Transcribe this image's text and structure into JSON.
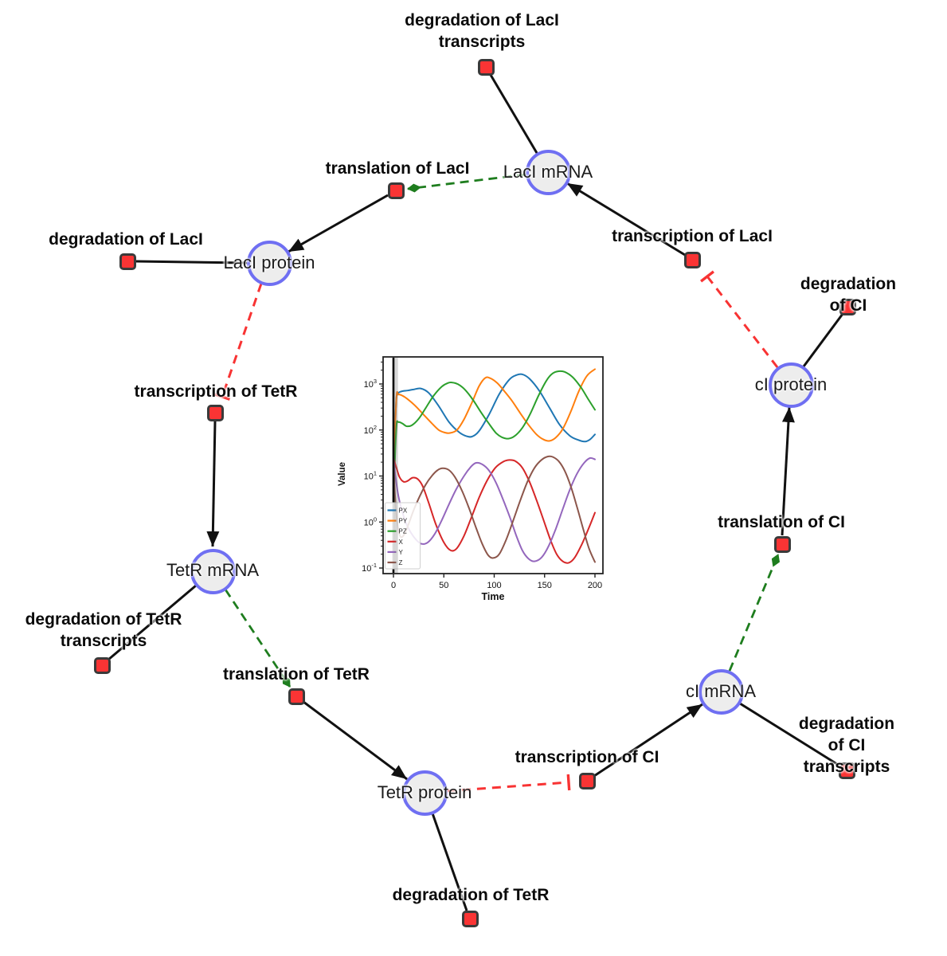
{
  "diagram": {
    "species_nodes": [
      {
        "id": "laci-mrna",
        "label": "LacI mRNA"
      },
      {
        "id": "laci-protein",
        "label": "LacI protein"
      },
      {
        "id": "tetr-mrna",
        "label": "TetR mRNA"
      },
      {
        "id": "tetr-protein",
        "label": "TetR protein"
      },
      {
        "id": "ci-mrna",
        "label": "cI mRNA"
      },
      {
        "id": "ci-protein",
        "label": "cI protein"
      }
    ],
    "reaction_nodes": [
      {
        "id": "degradation-of-laci-transcripts",
        "label": "degradation of LacI\ntranscripts"
      },
      {
        "id": "translation-of-laci",
        "label": "translation of LacI"
      },
      {
        "id": "transcription-of-laci",
        "label": "transcription of LacI"
      },
      {
        "id": "degradation-of-laci",
        "label": "degradation of LacI"
      },
      {
        "id": "transcription-of-tetr",
        "label": "transcription of TetR"
      },
      {
        "id": "degradation-of-ci",
        "label": "degradation of CI"
      },
      {
        "id": "translation-of-ci",
        "label": "translation of CI"
      },
      {
        "id": "degradation-of-tetr-transcripts",
        "label": "degradation of TetR\ntranscripts"
      },
      {
        "id": "translation-of-tetr",
        "label": "translation of TetR"
      },
      {
        "id": "transcription-of-ci",
        "label": "transcription of CI"
      },
      {
        "id": "degradation-of-ci-transcripts",
        "label": "degradation of CI\ntranscripts"
      },
      {
        "id": "degradation-of-tetr",
        "label": "degradation of TetR"
      }
    ],
    "edges": [
      {
        "from": "laci-mrna",
        "to": "degradation-of-laci-transcripts",
        "type": "consumption"
      },
      {
        "from": "laci-protein",
        "to": "degradation-of-laci",
        "type": "consumption"
      },
      {
        "from": "tetr-mrna",
        "to": "degradation-of-tetr-transcripts",
        "type": "consumption"
      },
      {
        "from": "tetr-protein",
        "to": "degradation-of-tetr",
        "type": "consumption"
      },
      {
        "from": "ci-mrna",
        "to": "degradation-of-ci-transcripts",
        "type": "consumption"
      },
      {
        "from": "ci-protein",
        "to": "degradation-of-ci",
        "type": "consumption"
      },
      {
        "from": "translation-of-laci",
        "to": "laci-protein",
        "type": "production"
      },
      {
        "from": "transcription-of-laci",
        "to": "laci-mrna",
        "type": "production"
      },
      {
        "from": "transcription-of-tetr",
        "to": "tetr-mrna",
        "type": "production"
      },
      {
        "from": "translation-of-tetr",
        "to": "tetr-protein",
        "type": "production"
      },
      {
        "from": "transcription-of-ci",
        "to": "ci-mrna",
        "type": "production"
      },
      {
        "from": "translation-of-ci",
        "to": "ci-protein",
        "type": "production"
      },
      {
        "from": "laci-mrna",
        "to": "translation-of-laci",
        "type": "modifier"
      },
      {
        "from": "tetr-mrna",
        "to": "translation-of-tetr",
        "type": "modifier"
      },
      {
        "from": "ci-mrna",
        "to": "translation-of-ci",
        "type": "modifier"
      },
      {
        "from": "laci-protein",
        "to": "transcription-of-tetr",
        "type": "inhibition"
      },
      {
        "from": "tetr-protein",
        "to": "transcription-of-ci",
        "type": "inhibition"
      },
      {
        "from": "ci-protein",
        "to": "transcription-of-laci",
        "type": "inhibition"
      }
    ],
    "style": {
      "species_fill": "#ededed",
      "species_border": "#6f6ff2",
      "reaction_fill": "#fa3434",
      "reaction_border": "#3a3a3a",
      "edge_black": "#111111",
      "edge_modifier_green": "#1e7d1e",
      "edge_inhibition_red": "#f83333"
    }
  },
  "chart_data": {
    "type": "line",
    "title": "",
    "xlabel": "Time",
    "ylabel": "Value",
    "x_range": [
      0,
      200
    ],
    "xticks": [
      0,
      50,
      100,
      150,
      200
    ],
    "yscale": "log",
    "ylim": [
      0.076,
      3700
    ],
    "ytick_exponents": [
      3,
      2,
      1,
      0,
      -1
    ],
    "grid": false,
    "legend_position": "lower left",
    "vline_at_x": 0,
    "series": [
      {
        "name": "PX",
        "color": "#1f77b4",
        "points": [
          [
            0,
            0.2
          ],
          [
            1,
            20
          ],
          [
            2.5,
            350
          ],
          [
            4,
            600
          ],
          [
            8,
            690
          ],
          [
            14,
            720
          ],
          [
            20,
            760
          ],
          [
            27,
            800
          ],
          [
            35,
            640
          ],
          [
            45,
            330
          ],
          [
            55,
            150
          ],
          [
            65,
            90
          ],
          [
            72,
            74
          ],
          [
            78,
            72
          ],
          [
            85,
            95
          ],
          [
            95,
            220
          ],
          [
            105,
            600
          ],
          [
            115,
            1250
          ],
          [
            122,
            1560
          ],
          [
            128,
            1620
          ],
          [
            135,
            1300
          ],
          [
            145,
            700
          ],
          [
            155,
            300
          ],
          [
            165,
            130
          ],
          [
            175,
            75
          ],
          [
            183,
            61
          ],
          [
            190,
            56
          ],
          [
            195,
            62
          ],
          [
            200,
            80
          ]
        ]
      },
      {
        "name": "PY",
        "color": "#ff7f0e",
        "points": [
          [
            0,
            0.3
          ],
          [
            1,
            30
          ],
          [
            3,
            520
          ],
          [
            5,
            590
          ],
          [
            9,
            555
          ],
          [
            14,
            470
          ],
          [
            22,
            330
          ],
          [
            30,
            215
          ],
          [
            38,
            140
          ],
          [
            45,
            100
          ],
          [
            51,
            88
          ],
          [
            56,
            86
          ],
          [
            63,
            100
          ],
          [
            70,
            170
          ],
          [
            78,
            400
          ],
          [
            85,
            900
          ],
          [
            91,
            1350
          ],
          [
            96,
            1340
          ],
          [
            103,
            1050
          ],
          [
            110,
            700
          ],
          [
            118,
            420
          ],
          [
            126,
            230
          ],
          [
            134,
            130
          ],
          [
            142,
            80
          ],
          [
            149,
            62
          ],
          [
            155,
            58
          ],
          [
            161,
            68
          ],
          [
            168,
            105
          ],
          [
            176,
            250
          ],
          [
            184,
            700
          ],
          [
            192,
            1500
          ],
          [
            200,
            2100
          ]
        ]
      },
      {
        "name": "PZ",
        "color": "#2ca02c",
        "points": [
          [
            0,
            0.5
          ],
          [
            1,
            10
          ],
          [
            3,
            120
          ],
          [
            5,
            148
          ],
          [
            9,
            138
          ],
          [
            13,
            121
          ],
          [
            18,
            126
          ],
          [
            25,
            175
          ],
          [
            32,
            300
          ],
          [
            40,
            560
          ],
          [
            48,
            880
          ],
          [
            54,
            1050
          ],
          [
            58,
            1080
          ],
          [
            64,
            990
          ],
          [
            71,
            750
          ],
          [
            79,
            450
          ],
          [
            87,
            240
          ],
          [
            95,
            135
          ],
          [
            102,
            85
          ],
          [
            108,
            69
          ],
          [
            114,
            65
          ],
          [
            120,
            73
          ],
          [
            128,
            112
          ],
          [
            136,
            230
          ],
          [
            144,
            560
          ],
          [
            152,
            1200
          ],
          [
            158,
            1700
          ],
          [
            164,
            1890
          ],
          [
            170,
            1830
          ],
          [
            178,
            1400
          ],
          [
            186,
            850
          ],
          [
            193,
            480
          ],
          [
            200,
            275
          ]
        ]
      },
      {
        "name": "X",
        "color": "#d62728",
        "points": [
          [
            0,
            25
          ],
          [
            3,
            15
          ],
          [
            6,
            9.5
          ],
          [
            10,
            7.5
          ],
          [
            14,
            7.8
          ],
          [
            19,
            9.2
          ],
          [
            24,
            8.6
          ],
          [
            29,
            6
          ],
          [
            35,
            2.6
          ],
          [
            42,
            0.9
          ],
          [
            50,
            0.36
          ],
          [
            57,
            0.24
          ],
          [
            63,
            0.27
          ],
          [
            70,
            0.5
          ],
          [
            77,
            1.2
          ],
          [
            85,
            3.4
          ],
          [
            93,
            8
          ],
          [
            101,
            15
          ],
          [
            109,
            20.5
          ],
          [
            115,
            22.3
          ],
          [
            121,
            21
          ],
          [
            128,
            15
          ],
          [
            135,
            7.5
          ],
          [
            142,
            3
          ],
          [
            149,
            1.1
          ],
          [
            156,
            0.4
          ],
          [
            162,
            0.2
          ],
          [
            168,
            0.14
          ],
          [
            174,
            0.13
          ],
          [
            180,
            0.17
          ],
          [
            187,
            0.33
          ],
          [
            194,
            0.75
          ],
          [
            200,
            1.6
          ]
        ]
      },
      {
        "name": "Y",
        "color": "#9467bd",
        "points": [
          [
            0,
            25
          ],
          [
            2,
            10
          ],
          [
            5,
            3.6
          ],
          [
            9,
            1.6
          ],
          [
            14,
            0.8
          ],
          [
            20,
            0.48
          ],
          [
            27,
            0.34
          ],
          [
            34,
            0.36
          ],
          [
            41,
            0.55
          ],
          [
            48,
            1.1
          ],
          [
            55,
            2.4
          ],
          [
            62,
            5
          ],
          [
            70,
            10
          ],
          [
            77,
            16
          ],
          [
            82,
            19.3
          ],
          [
            88,
            18
          ],
          [
            95,
            13
          ],
          [
            102,
            7
          ],
          [
            109,
            3
          ],
          [
            116,
            1.2
          ],
          [
            122,
            0.5
          ],
          [
            128,
            0.24
          ],
          [
            134,
            0.16
          ],
          [
            140,
            0.14
          ],
          [
            147,
            0.17
          ],
          [
            154,
            0.3
          ],
          [
            161,
            0.7
          ],
          [
            168,
            1.9
          ],
          [
            175,
            5
          ],
          [
            182,
            11
          ],
          [
            189,
            19
          ],
          [
            195,
            24.5
          ],
          [
            200,
            23
          ]
        ]
      },
      {
        "name": "Z",
        "color": "#8c564b",
        "points": [
          [
            0,
            25
          ],
          [
            1.5,
            4
          ],
          [
            4,
            0.9
          ],
          [
            7,
            0.48
          ],
          [
            11,
            0.55
          ],
          [
            15,
            0.9
          ],
          [
            20,
            1.8
          ],
          [
            26,
            3.6
          ],
          [
            32,
            6.5
          ],
          [
            38,
            10
          ],
          [
            44,
            13.5
          ],
          [
            49,
            14.8
          ],
          [
            55,
            13.5
          ],
          [
            61,
            9.5
          ],
          [
            68,
            4.8
          ],
          [
            75,
            2
          ],
          [
            82,
            0.75
          ],
          [
            88,
            0.34
          ],
          [
            94,
            0.19
          ],
          [
            99,
            0.165
          ],
          [
            105,
            0.2
          ],
          [
            112,
            0.42
          ],
          [
            119,
            1.1
          ],
          [
            126,
            3
          ],
          [
            133,
            7.5
          ],
          [
            140,
            15
          ],
          [
            147,
            22.5
          ],
          [
            153,
            26.5
          ],
          [
            158,
            26
          ],
          [
            164,
            21
          ],
          [
            170,
            13
          ],
          [
            176,
            6
          ],
          [
            182,
            2.2
          ],
          [
            188,
            0.75
          ],
          [
            194,
            0.27
          ],
          [
            200,
            0.135
          ]
        ]
      }
    ]
  }
}
